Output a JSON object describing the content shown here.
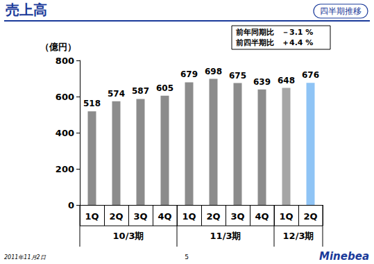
{
  "chart_data": {
    "type": "bar",
    "title": "売上高",
    "subtitle": "四半期推移",
    "y_label": "（億円）",
    "annotations": [
      "前年同期比　－3.1 %",
      "前四半期比　＋4.4 %"
    ],
    "categories": [
      "1Q",
      "2Q",
      "3Q",
      "4Q",
      "1Q",
      "2Q",
      "3Q",
      "4Q",
      "1Q",
      "2Q"
    ],
    "category_groups": [
      {
        "label": "10/3期",
        "count": 4
      },
      {
        "label": "11/3期",
        "count": 4
      },
      {
        "label": "12/3期",
        "count": 2
      }
    ],
    "values": [
      518,
      574,
      587,
      605,
      679,
      698,
      675,
      639,
      648,
      676
    ],
    "colors": [
      "#8c8c8c",
      "#8c8c8c",
      "#8c8c8c",
      "#8c8c8c",
      "#8c8c8c",
      "#8c8c8c",
      "#8c8c8c",
      "#8c8c8c",
      "#a6a6a6",
      "#8fc4f5"
    ],
    "ylim": [
      0,
      800
    ],
    "yticks": [
      0,
      200,
      400,
      600,
      800
    ],
    "grid": false,
    "data_labels": true,
    "footer": {
      "date": "2011年11月2日",
      "page": "5",
      "brand": "Minebea"
    }
  }
}
